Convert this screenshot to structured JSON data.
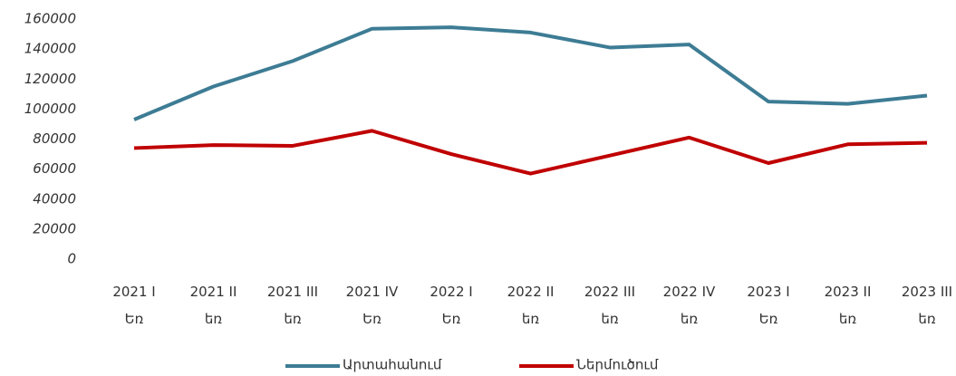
{
  "chart_data": {
    "type": "line",
    "categories": [
      "2021 I\nԵռ",
      "2021 II\nեռ",
      "2021 III\nեռ",
      "2021 IV\nԵռ",
      "2022 I\nԵռ",
      "2022 II\nեռ",
      "2022 III\nեռ",
      "2022 IV\nեռ",
      "2023 I\nԵռ",
      "2023 II\nեռ",
      "2023 III\nեռ"
    ],
    "series": [
      {
        "name": "Արտահանում",
        "color": "#3d7c94",
        "values": [
          93000,
          115000,
          132000,
          153500,
          154500,
          151000,
          141000,
          143000,
          105000,
          103500,
          109000
        ]
      },
      {
        "name": "Ներմուծում",
        "color": "#c00000",
        "values": [
          74000,
          76000,
          75500,
          85500,
          70000,
          57000,
          69000,
          81000,
          64000,
          76500,
          77500
        ]
      }
    ],
    "ylim": [
      0,
      160000
    ],
    "yticks": [
      0,
      20000,
      40000,
      60000,
      80000,
      100000,
      120000,
      140000,
      160000
    ],
    "grid": false,
    "legend": "bottom"
  }
}
